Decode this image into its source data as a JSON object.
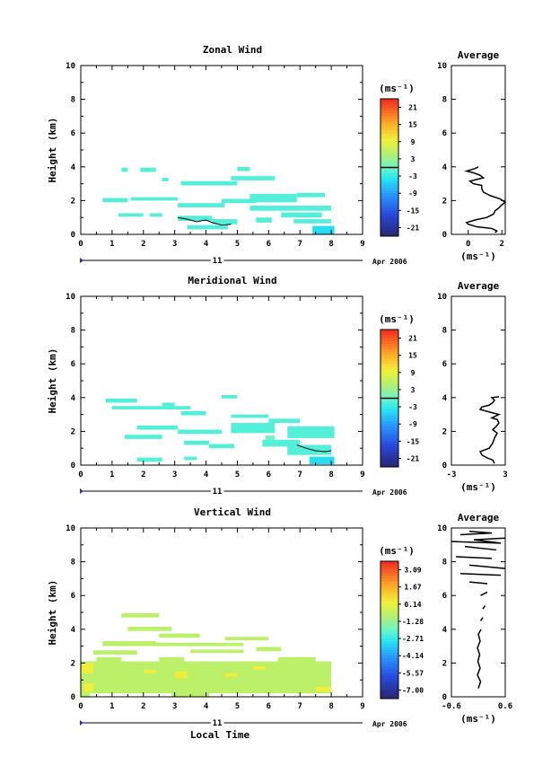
{
  "chart_data": [
    {
      "type": "heatmap",
      "title": "Zonal Wind",
      "xlabel": "",
      "ylabel": "Height (km)",
      "xlim": [
        0,
        9
      ],
      "ylim": [
        0,
        10
      ],
      "xticks": [
        "0",
        "1",
        "2",
        "3",
        "4",
        "5",
        "6",
        "7",
        "8",
        "9"
      ],
      "yticks": [
        "0",
        "2",
        "4",
        "6",
        "8",
        "10"
      ],
      "date_day": "11",
      "date_month": "Apr 2006",
      "colorbar": {
        "unit": "(ms⁻¹)",
        "labels": [
          "21",
          "15",
          "9",
          "3",
          "-3",
          "-9",
          "-15",
          "-21"
        ],
        "range": [
          -24,
          24
        ]
      },
      "cells": [
        {
          "x0": 1.9,
          "x1": 2.4,
          "y0": 3.7,
          "y1": 3.95,
          "v": -1.5
        },
        {
          "x0": 1.3,
          "x1": 1.5,
          "y0": 3.7,
          "y1": 3.95,
          "v": -1.5
        },
        {
          "x0": 2.6,
          "x1": 2.8,
          "y0": 3.15,
          "y1": 3.35,
          "v": -1.5
        },
        {
          "x0": 3.2,
          "x1": 5.0,
          "y0": 2.9,
          "y1": 3.15,
          "v": -1.5
        },
        {
          "x0": 4.8,
          "x1": 6.2,
          "y0": 3.2,
          "y1": 3.45,
          "v": -1.5
        },
        {
          "x0": 5.0,
          "x1": 5.4,
          "y0": 3.75,
          "y1": 4.0,
          "v": -1.5
        },
        {
          "x0": 0.7,
          "x1": 1.5,
          "y0": 1.9,
          "y1": 2.15,
          "v": -1.5
        },
        {
          "x0": 1.6,
          "x1": 3.1,
          "y0": 2.0,
          "y1": 2.2,
          "v": -1.5
        },
        {
          "x0": 3.1,
          "x1": 4.6,
          "y0": 1.6,
          "y1": 1.85,
          "v": -1.5
        },
        {
          "x0": 4.5,
          "x1": 5.6,
          "y0": 1.85,
          "y1": 2.1,
          "v": -1.5
        },
        {
          "x0": 5.4,
          "x1": 6.9,
          "y0": 1.9,
          "y1": 2.4,
          "v": -1.5
        },
        {
          "x0": 5.4,
          "x1": 8.0,
          "y0": 1.4,
          "y1": 1.7,
          "v": -1.5
        },
        {
          "x0": 6.9,
          "x1": 7.8,
          "y0": 2.2,
          "y1": 2.45,
          "v": -1.5
        },
        {
          "x0": 1.2,
          "x1": 2.0,
          "y0": 1.05,
          "y1": 1.25,
          "v": -1.5
        },
        {
          "x0": 2.2,
          "x1": 2.6,
          "y0": 1.05,
          "y1": 1.25,
          "v": -1.5
        },
        {
          "x0": 3.1,
          "x1": 4.2,
          "y0": 0.8,
          "y1": 1.1,
          "v": -1.5
        },
        {
          "x0": 4.2,
          "x1": 5.0,
          "y0": 0.6,
          "y1": 0.9,
          "v": -1.5
        },
        {
          "x0": 3.4,
          "x1": 4.7,
          "y0": 0.3,
          "y1": 0.55,
          "v": -1.5
        },
        {
          "x0": 5.6,
          "x1": 6.1,
          "y0": 0.7,
          "y1": 1.0,
          "v": -1.5
        },
        {
          "x0": 6.4,
          "x1": 7.7,
          "y0": 1.0,
          "y1": 1.3,
          "v": -1.5
        },
        {
          "x0": 6.8,
          "x1": 8.0,
          "y0": 0.65,
          "y1": 0.9,
          "v": -1.5
        },
        {
          "x0": 7.4,
          "x1": 8.1,
          "y0": 0.0,
          "y1": 0.5,
          "v": -4.5
        }
      ],
      "contour": [
        [
          3.1,
          1.0
        ],
        [
          3.4,
          0.9
        ],
        [
          3.7,
          0.75
        ],
        [
          4.0,
          0.85
        ],
        [
          4.2,
          0.7
        ],
        [
          4.5,
          0.55
        ],
        [
          4.8,
          0.6
        ]
      ],
      "avg": {
        "xlim": [
          -1,
          2.2
        ],
        "xticks": [
          "0",
          "2"
        ],
        "xlabel": "(ms⁻¹)",
        "title": "Average",
        "points": [
          [
            1.6,
            0.1
          ],
          [
            1.7,
            0.2
          ],
          [
            1.4,
            0.35
          ],
          [
            0.5,
            0.45
          ],
          [
            0.0,
            0.6
          ],
          [
            -0.1,
            0.7
          ],
          [
            0.4,
            0.85
          ],
          [
            1.1,
            1.0
          ],
          [
            1.5,
            1.2
          ],
          [
            1.6,
            1.4
          ],
          [
            1.8,
            1.55
          ],
          [
            2.0,
            1.75
          ],
          [
            2.2,
            1.9
          ],
          [
            1.9,
            2.1
          ],
          [
            1.3,
            2.3
          ],
          [
            0.9,
            2.5
          ],
          [
            0.8,
            2.7
          ],
          [
            0.8,
            2.9
          ],
          [
            0.3,
            3.0
          ],
          [
            0.1,
            3.15
          ],
          [
            0.9,
            3.35
          ],
          [
            0.7,
            3.5
          ],
          [
            0.3,
            3.65
          ],
          [
            -0.1,
            3.75
          ],
          [
            0.4,
            3.9
          ],
          [
            0.6,
            4.0
          ]
        ]
      }
    },
    {
      "type": "heatmap",
      "title": "Meridional Wind",
      "xlabel": "",
      "ylabel": "Height (km)",
      "xlim": [
        0,
        9
      ],
      "ylim": [
        0,
        10
      ],
      "xticks": [
        "0",
        "1",
        "2",
        "3",
        "4",
        "5",
        "6",
        "7",
        "8",
        "9"
      ],
      "yticks": [
        "0",
        "2",
        "4",
        "6",
        "8",
        "10"
      ],
      "date_day": "11",
      "date_month": "Apr 2006",
      "colorbar": {
        "unit": "(ms⁻¹)",
        "labels": [
          "21",
          "15",
          "9",
          "3",
          "-3",
          "-9",
          "-15",
          "-21"
        ],
        "range": [
          -24,
          24
        ]
      },
      "cells": [
        {
          "x0": 0.8,
          "x1": 1.8,
          "y0": 3.7,
          "y1": 3.95,
          "v": -1.5
        },
        {
          "x0": 2.6,
          "x1": 3.0,
          "y0": 3.45,
          "y1": 3.7,
          "v": -1.5
        },
        {
          "x0": 4.5,
          "x1": 5.0,
          "y0": 3.95,
          "y1": 4.15,
          "v": -1.5
        },
        {
          "x0": 1.0,
          "x1": 3.5,
          "y0": 3.3,
          "y1": 3.5,
          "v": -1.5
        },
        {
          "x0": 3.2,
          "x1": 4.0,
          "y0": 2.95,
          "y1": 3.2,
          "v": -1.5
        },
        {
          "x0": 4.8,
          "x1": 6.0,
          "y0": 2.8,
          "y1": 3.0,
          "v": -1.5
        },
        {
          "x0": 6.0,
          "x1": 7.0,
          "y0": 2.5,
          "y1": 2.75,
          "v": -1.5
        },
        {
          "x0": 1.8,
          "x1": 3.1,
          "y0": 2.1,
          "y1": 2.35,
          "v": -1.5
        },
        {
          "x0": 3.1,
          "x1": 4.5,
          "y0": 1.85,
          "y1": 2.1,
          "v": -1.5
        },
        {
          "x0": 4.8,
          "x1": 6.2,
          "y0": 1.9,
          "y1": 2.5,
          "v": -1.5
        },
        {
          "x0": 6.6,
          "x1": 8.1,
          "y0": 1.6,
          "y1": 2.3,
          "v": -1.5
        },
        {
          "x0": 1.4,
          "x1": 2.6,
          "y0": 1.55,
          "y1": 1.8,
          "v": -1.5
        },
        {
          "x0": 3.3,
          "x1": 4.1,
          "y0": 1.2,
          "y1": 1.45,
          "v": -1.5
        },
        {
          "x0": 4.1,
          "x1": 4.9,
          "y0": 1.0,
          "y1": 1.25,
          "v": -1.5
        },
        {
          "x0": 5.8,
          "x1": 7.0,
          "y0": 1.1,
          "y1": 1.5,
          "v": -1.5
        },
        {
          "x0": 6.6,
          "x1": 8.0,
          "y0": 0.6,
          "y1": 1.2,
          "v": -1.5
        },
        {
          "x0": 1.8,
          "x1": 2.6,
          "y0": 0.2,
          "y1": 0.45,
          "v": -1.5
        },
        {
          "x0": 3.3,
          "x1": 3.7,
          "y0": 0.3,
          "y1": 0.5,
          "v": -1.5
        },
        {
          "x0": 7.3,
          "x1": 8.1,
          "y0": 0.05,
          "y1": 0.5,
          "v": -4.5
        },
        {
          "x0": 5.9,
          "x1": 6.2,
          "y0": 1.5,
          "y1": 1.75,
          "v": 0.5
        }
      ],
      "contour": [
        [
          6.9,
          1.2
        ],
        [
          7.2,
          1.0
        ],
        [
          7.5,
          0.85
        ],
        [
          7.8,
          0.8
        ],
        [
          8.0,
          0.85
        ]
      ],
      "avg": {
        "xlim": [
          -3,
          3
        ],
        "xticks": [
          "-3",
          "3"
        ],
        "xlabel": "(ms⁻¹)",
        "title": "Average",
        "points": [
          [
            1.8,
            0.1
          ],
          [
            1.6,
            0.3
          ],
          [
            0.9,
            0.45
          ],
          [
            0.4,
            0.6
          ],
          [
            0.2,
            0.8
          ],
          [
            1.2,
            1.0
          ],
          [
            1.6,
            1.3
          ],
          [
            1.8,
            1.6
          ],
          [
            2.1,
            1.9
          ],
          [
            1.6,
            2.1
          ],
          [
            2.0,
            2.3
          ],
          [
            2.3,
            2.5
          ],
          [
            2.1,
            2.7
          ],
          [
            1.5,
            2.8
          ],
          [
            2.3,
            3.0
          ],
          [
            1.2,
            3.15
          ],
          [
            0.2,
            3.3
          ],
          [
            0.4,
            3.45
          ],
          [
            1.2,
            3.55
          ],
          [
            1.6,
            3.7
          ],
          [
            1.8,
            3.85
          ],
          [
            1.5,
            4.0
          ],
          [
            2.3,
            4.05
          ]
        ]
      }
    },
    {
      "type": "heatmap",
      "title": "Vertical Wind",
      "xlabel": "Local Time",
      "ylabel": "Height (km)",
      "xlim": [
        0,
        9
      ],
      "ylim": [
        0,
        10
      ],
      "xticks": [
        "0",
        "1",
        "2",
        "3",
        "4",
        "5",
        "6",
        "7",
        "8",
        "9"
      ],
      "yticks": [
        "0",
        "2",
        "4",
        "6",
        "8",
        "10"
      ],
      "date_day": "11",
      "date_month": "Apr 2006",
      "colorbar": {
        "unit": "(ms⁻¹)",
        "labels": [
          "3.09",
          "1.67",
          "0.14",
          "-1.28",
          "-2.71",
          "-4.14",
          "-5.57",
          "-7.00"
        ],
        "range": [
          -7.3,
          3.5
        ]
      },
      "cells": [
        {
          "x0": 1.3,
          "x1": 2.5,
          "y0": 4.7,
          "y1": 4.95,
          "v": -0.7
        },
        {
          "x0": 1.5,
          "x1": 2.9,
          "y0": 3.9,
          "y1": 4.15,
          "v": -0.7
        },
        {
          "x0": 2.5,
          "x1": 3.8,
          "y0": 3.5,
          "y1": 3.75,
          "v": -0.7
        },
        {
          "x0": 0.4,
          "x1": 1.8,
          "y0": 2.5,
          "y1": 2.75,
          "v": -0.7
        },
        {
          "x0": 0.7,
          "x1": 2.4,
          "y0": 3.0,
          "y1": 3.3,
          "v": -0.7
        },
        {
          "x0": 2.4,
          "x1": 5.2,
          "y0": 3.0,
          "y1": 3.2,
          "v": -0.7
        },
        {
          "x0": 4.6,
          "x1": 6.0,
          "y0": 3.35,
          "y1": 3.55,
          "v": -0.7
        },
        {
          "x0": 3.5,
          "x1": 5.2,
          "y0": 2.6,
          "y1": 2.8,
          "v": -0.7
        },
        {
          "x0": 5.6,
          "x1": 6.4,
          "y0": 2.7,
          "y1": 2.95,
          "v": -0.7
        },
        {
          "x0": 0.0,
          "x1": 8.0,
          "y0": 0.2,
          "y1": 2.1,
          "v": -0.7
        },
        {
          "x0": 0.5,
          "x1": 1.3,
          "y0": 2.1,
          "y1": 2.35,
          "v": -0.7
        },
        {
          "x0": 2.5,
          "x1": 3.3,
          "y0": 2.1,
          "y1": 2.35,
          "v": -0.7
        },
        {
          "x0": 6.3,
          "x1": 7.5,
          "y0": 2.1,
          "y1": 2.35,
          "v": -0.7
        },
        {
          "x0": 0.0,
          "x1": 0.3,
          "y0": 0.0,
          "y1": 0.2,
          "v": -0.7
        },
        {
          "x0": 2.9,
          "x1": 4.1,
          "y0": 0.0,
          "y1": 0.25,
          "v": -0.7
        },
        {
          "x0": 0.0,
          "x1": 0.4,
          "y0": 1.4,
          "y1": 2.0,
          "v": 0.3
        },
        {
          "x0": 0.1,
          "x1": 0.4,
          "y0": 0.3,
          "y1": 0.8,
          "v": 0.3
        },
        {
          "x0": 3.0,
          "x1": 3.4,
          "y0": 1.1,
          "y1": 1.5,
          "v": 0.3
        },
        {
          "x0": 2.0,
          "x1": 2.4,
          "y0": 1.4,
          "y1": 1.6,
          "v": 0.3
        },
        {
          "x0": 5.5,
          "x1": 5.9,
          "y0": 1.6,
          "y1": 1.8,
          "v": 0.3
        },
        {
          "x0": 4.6,
          "x1": 5.0,
          "y0": 1.2,
          "y1": 1.4,
          "v": 0.3
        },
        {
          "x0": 7.5,
          "x1": 8.0,
          "y0": 0.3,
          "y1": 0.6,
          "v": 0.3
        }
      ],
      "contour": [],
      "avg": {
        "xlim": [
          -0.6,
          0.6
        ],
        "xticks": [
          "-0.6",
          "0.6"
        ],
        "xlabel": "(ms⁻¹)",
        "title": "Average",
        "segments": [
          [
            [
              0.0,
              0.5
            ],
            [
              0.05,
              0.9
            ],
            [
              -0.02,
              1.3
            ],
            [
              0.04,
              1.7
            ],
            [
              -0.01,
              2.1
            ],
            [
              0.03,
              2.5
            ],
            [
              -0.02,
              2.9
            ],
            [
              0.04,
              3.3
            ],
            [
              0.0,
              3.7
            ],
            [
              0.06,
              4.0
            ]
          ],
          [
            [
              0.05,
              4.5
            ],
            [
              0.1,
              4.7
            ]
          ],
          [
            [
              0.1,
              5.2
            ],
            [
              0.15,
              5.4
            ]
          ],
          [
            [
              0.05,
              6.0
            ],
            [
              0.2,
              6.2
            ]
          ],
          [
            [
              -0.2,
              6.8
            ],
            [
              0.2,
              6.7
            ]
          ],
          [
            [
              -0.4,
              7.3
            ],
            [
              0.5,
              7.2
            ]
          ],
          [
            [
              -0.2,
              7.8
            ],
            [
              0.6,
              7.6
            ]
          ],
          [
            [
              -0.5,
              8.3
            ],
            [
              0.3,
              8.2
            ]
          ],
          [
            [
              -0.3,
              8.9
            ],
            [
              0.4,
              8.7
            ]
          ],
          [
            [
              -0.6,
              9.2
            ],
            [
              0.5,
              9.1
            ],
            [
              -0.1,
              9.3
            ],
            [
              0.6,
              9.4
            ]
          ],
          [
            [
              -0.4,
              9.6
            ],
            [
              0.3,
              9.7
            ],
            [
              -0.2,
              9.8
            ]
          ]
        ]
      }
    }
  ]
}
